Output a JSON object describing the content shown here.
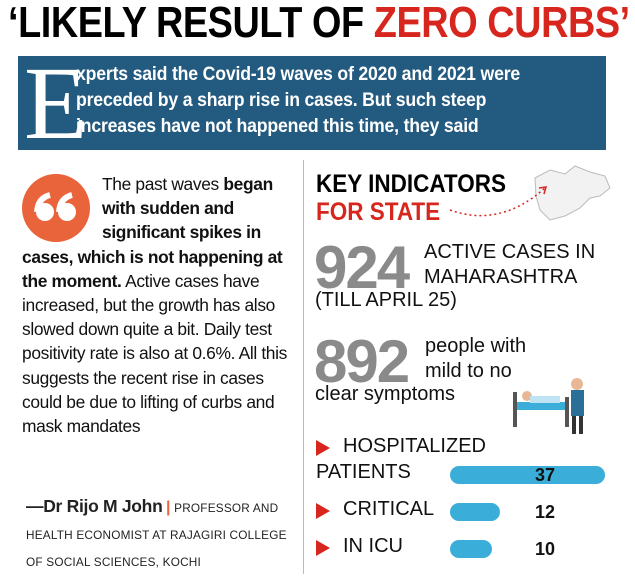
{
  "header": {
    "title_black": "‘LIKELY RESULT OF ",
    "title_red": "ZERO CURBS’"
  },
  "intro": {
    "drop_cap": "E",
    "lines": [
      "xperts said the Covid-19 waves of 2020 and 2021 were",
      "preceded by a sharp rise in cases. But such steep",
      "increases have not happened this time, they said"
    ]
  },
  "quote": {
    "parts": [
      {
        "text": "The past waves ",
        "bold": false
      },
      {
        "text": "began with sudden and significant spikes in cases, which is not happening at the moment.",
        "bold": true
      },
      {
        "text": " Active cases have increased, but the growth has also slowed down quite a bit. Daily test positivity rate is also at 0.6%. All this suggests the recent rise in cases could be due to lifting of curbs and mask mandates",
        "bold": false
      }
    ],
    "author": "—Dr Rijo M John",
    "author_role": "PROFESSOR AND HEALTH ECONOMIST AT RAJAGIRI COLLEGE OF SOCIAL SCIENCES, KOCHI"
  },
  "indicators": {
    "title_black": "KEY INDICATORS",
    "title_red": "FOR STATE",
    "stats": [
      {
        "value": 924,
        "label_lines": [
          "ACTIVE CASES IN",
          "MAHARASHTRA"
        ],
        "note": "(TILL APRIL 25)"
      },
      {
        "value": 892,
        "label_lines": [
          "people with",
          "mild to no"
        ],
        "note": "clear symptoms"
      }
    ],
    "rows": [
      {
        "label_lines": [
          "HOSPITALIZED",
          "PATIENTS"
        ],
        "value": 37
      },
      {
        "label_lines": [
          "CRITICAL"
        ],
        "value": 12
      },
      {
        "label_lines": [
          "IN ICU"
        ],
        "value": 10
      }
    ]
  }
}
